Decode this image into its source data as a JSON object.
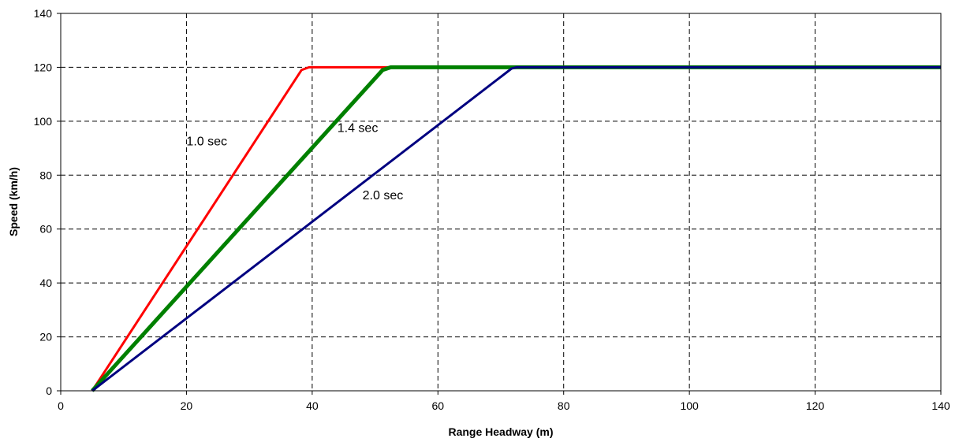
{
  "chart_data": {
    "type": "line",
    "title": "",
    "xlabel": "Range Headway (m)",
    "ylabel": "Speed (km/h)",
    "xlim": [
      0,
      140
    ],
    "ylim": [
      0,
      140
    ],
    "xticks": [
      0,
      20,
      40,
      60,
      80,
      100,
      120,
      140
    ],
    "yticks": [
      0,
      20,
      40,
      60,
      80,
      100,
      120,
      140
    ],
    "grid": true,
    "grid_style": "dashed",
    "legend": "none",
    "series": [
      {
        "name": "1.0 sec",
        "color": "#ff0000",
        "x": [
          5,
          38.3,
          39.5,
          140
        ],
        "y": [
          0,
          119,
          120,
          120
        ]
      },
      {
        "name": "1.4 sec",
        "color": "#008000",
        "x": [
          5,
          51.2,
          52.5,
          140
        ],
        "y": [
          0,
          119,
          120,
          120
        ]
      },
      {
        "name": "2.0 sec",
        "color": "#000080",
        "x": [
          5,
          71.7,
          72.5,
          140
        ],
        "y": [
          0,
          119.5,
          120,
          120
        ]
      }
    ],
    "annotations": [
      {
        "text": "1.0 sec",
        "x": 20,
        "y": 91
      },
      {
        "text": "1.4 sec",
        "x": 44,
        "y": 96
      },
      {
        "text": "2.0 sec",
        "x": 48,
        "y": 71
      }
    ]
  }
}
